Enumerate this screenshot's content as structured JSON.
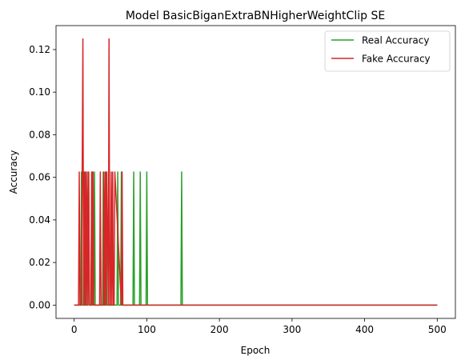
{
  "chart_data": {
    "type": "line",
    "title": "Model BasicBiganExtraBNHigherWeightClip SE",
    "xlabel": "Epoch",
    "ylabel": "Accuracy",
    "xlim": [
      -25,
      525
    ],
    "ylim": [
      -0.00625,
      0.13125
    ],
    "xticks": [
      0,
      100,
      200,
      300,
      400,
      500
    ],
    "xtick_labels": [
      "0",
      "100",
      "200",
      "300",
      "400",
      "500"
    ],
    "yticks": [
      0.0,
      0.02,
      0.04,
      0.06,
      0.08,
      0.1,
      0.12
    ],
    "ytick_labels": [
      "0.00",
      "0.02",
      "0.04",
      "0.06",
      "0.08",
      "0.10",
      "0.12"
    ],
    "grid": false,
    "legend_position": "upper-right",
    "series": [
      {
        "name": "Real Accuracy",
        "color": "#2ca02c",
        "x": [
          0,
          9,
          10,
          11,
          14,
          15,
          16,
          19,
          20,
          21,
          24,
          25,
          26,
          27,
          28,
          29,
          39,
          40,
          41,
          43,
          44,
          45,
          59,
          60,
          61,
          64,
          65,
          66,
          81,
          82,
          83,
          90,
          91,
          92,
          99,
          100,
          101,
          147,
          148,
          149,
          500
        ],
        "y": [
          0,
          0,
          0.0625,
          0,
          0,
          0.0625,
          0,
          0,
          0.0625,
          0,
          0,
          0.0625,
          0,
          0,
          0.0625,
          0,
          0,
          0.0625,
          0,
          0,
          0.0625,
          0,
          0,
          0.0625,
          0,
          0,
          0.0625,
          0,
          0,
          0.0625,
          0,
          0,
          0.0625,
          0,
          0,
          0.0625,
          0,
          0,
          0.0625,
          0,
          0
        ]
      },
      {
        "name": "Fake Accuracy",
        "color": "#d62728",
        "x": [
          0,
          6,
          7,
          8,
          10,
          11,
          12,
          13,
          14,
          15,
          16,
          17,
          18,
          19,
          20,
          21,
          23,
          24,
          25,
          26,
          27,
          35,
          36,
          37,
          40,
          41,
          42,
          43,
          44,
          45,
          47,
          48,
          49,
          50,
          51,
          52,
          53,
          54,
          55,
          56,
          65,
          66,
          67,
          500
        ],
        "y": [
          0,
          0,
          0.0625,
          0,
          0,
          0.0625,
          0.125,
          0,
          0.0625,
          0,
          0.0625,
          0,
          0.0625,
          0,
          0.0625,
          0,
          0,
          0.0625,
          0,
          0.0625,
          0,
          0,
          0.0625,
          0,
          0,
          0.0625,
          0,
          0.0625,
          0,
          0.0625,
          0,
          0.125,
          0,
          0,
          0.0625,
          0,
          0.0625,
          0,
          0,
          0.0625,
          0,
          0.0625,
          0,
          0
        ]
      }
    ]
  }
}
